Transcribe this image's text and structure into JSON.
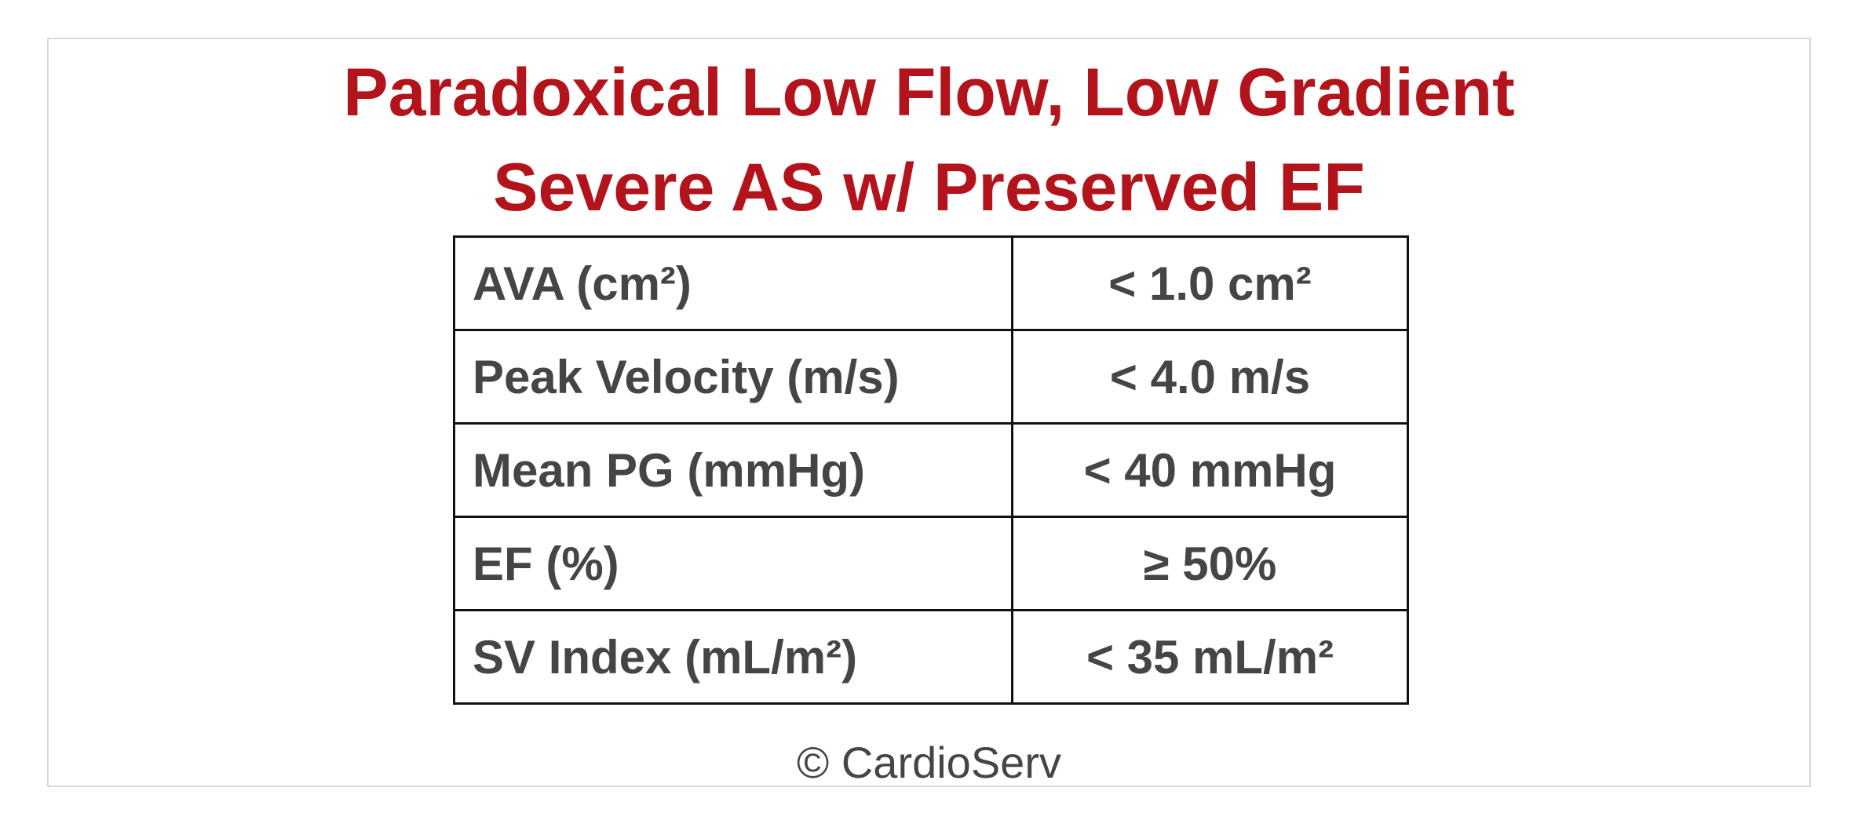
{
  "header": {
    "title_lines": [
      "Paradoxical Low Flow, Low Gradient",
      "Severe AS w/ Preserved EF"
    ]
  },
  "table": {
    "rows": [
      [
        "AVA (cm²)",
        "< 1.0 cm²"
      ],
      [
        "Peak Velocity (m/s)",
        "< 4.0 m/s"
      ],
      [
        "Mean PG (mmHg)",
        "< 40 mmHg"
      ],
      [
        "EF (%)",
        "≥ 50%"
      ],
      [
        "SV Index (mL/m²)",
        "< 35 mL/m²"
      ]
    ]
  },
  "footer": {
    "credit": "© CardioServ"
  }
}
